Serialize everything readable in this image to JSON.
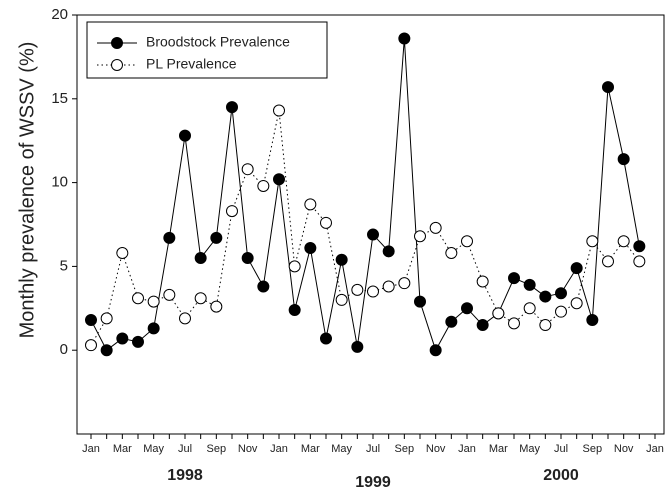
{
  "chart_data": {
    "type": "line",
    "y_label": "Monthly prevalence of WSSV (%)",
    "categories": [
      "Jan",
      null,
      "Mar",
      null,
      "May",
      null,
      "Jul",
      null,
      "Sep",
      null,
      "Nov",
      null,
      "Jan",
      null,
      "Mar",
      null,
      "May",
      null,
      "Jul",
      null,
      "Sep",
      null,
      "Nov",
      null,
      "Jan",
      null,
      "Mar",
      null,
      "May",
      null,
      "Jul",
      null,
      "Sep",
      null,
      "Nov",
      null,
      "Jan"
    ],
    "year_labels": [
      "1998",
      "1999",
      "2000"
    ],
    "series": [
      {
        "name": "Broodstock Prevalence",
        "color": "#000000",
        "marker": "filled",
        "dash": "solid",
        "values": [
          1.8,
          0,
          0.7,
          0.5,
          1.3,
          6.7,
          12.8,
          5.5,
          6.7,
          14.5,
          5.5,
          3.8,
          10.2,
          2.4,
          6.1,
          0.7,
          5.4,
          0.2,
          6.9,
          5.9,
          18.6,
          2.9,
          0,
          1.7,
          2.5,
          1.5,
          2.2,
          4.3,
          3.9,
          3.2,
          3.4,
          4.9,
          1.8,
          15.7,
          11.4,
          6.2,
          null
        ]
      },
      {
        "name": "PL Prevalence",
        "color": "#000000",
        "marker": "open",
        "dash": "dotted",
        "values": [
          0.3,
          1.9,
          5.8,
          3.1,
          2.9,
          3.3,
          1.9,
          3.1,
          2.6,
          8.3,
          10.8,
          9.8,
          14.3,
          5.0,
          8.7,
          7.6,
          3.0,
          3.6,
          3.5,
          3.8,
          4.0,
          6.8,
          7.3,
          5.8,
          6.5,
          4.1,
          2.2,
          1.6,
          2.5,
          1.5,
          2.3,
          2.8,
          6.5,
          5.3,
          6.5,
          5.3,
          null
        ]
      }
    ],
    "ylim": [
      -5,
      20
    ],
    "yticks": [
      0,
      5,
      10,
      15,
      20
    ],
    "legend": "top-left"
  }
}
